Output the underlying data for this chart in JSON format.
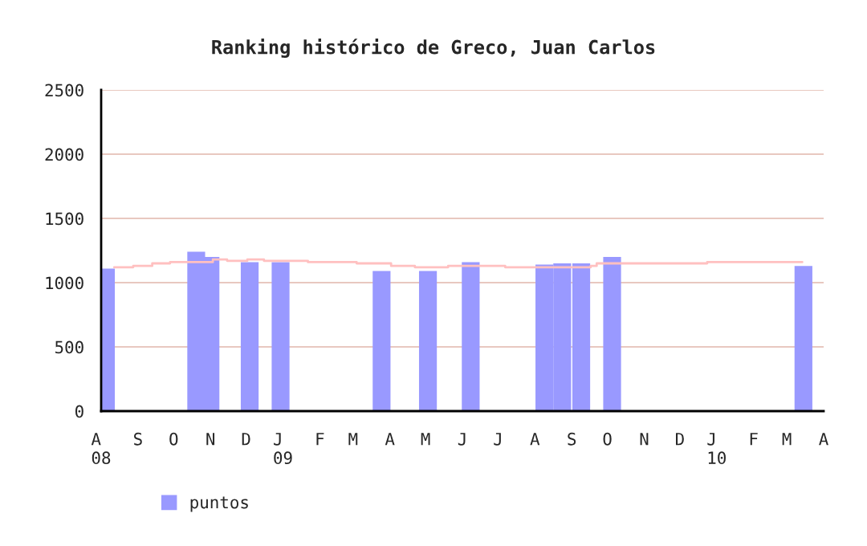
{
  "chart_data": {
    "type": "bar",
    "title": "Ranking histórico de Greco, Juan Carlos",
    "xlim": [
      "2008-08",
      "2010-04"
    ],
    "xticks": [
      {
        "value": "2008-08",
        "label": "A\n08"
      },
      {
        "value": "2008-09",
        "label": "S"
      },
      {
        "value": "2008-10",
        "label": "O"
      },
      {
        "value": "2008-11",
        "label": "N"
      },
      {
        "value": "2008-12",
        "label": "D"
      },
      {
        "value": "2009-01",
        "label": "J\n09"
      },
      {
        "value": "2009-02",
        "label": "F"
      },
      {
        "value": "2009-03",
        "label": "M"
      },
      {
        "value": "2009-04",
        "label": "A"
      },
      {
        "value": "2009-05",
        "label": "M"
      },
      {
        "value": "2009-06",
        "label": "J"
      },
      {
        "value": "2009-07",
        "label": "J"
      },
      {
        "value": "2009-08",
        "label": "A"
      },
      {
        "value": "2009-09",
        "label": "S"
      },
      {
        "value": "2009-10",
        "label": "O"
      },
      {
        "value": "2009-11",
        "label": "N"
      },
      {
        "value": "2009-12",
        "label": "D"
      },
      {
        "value": "2010-01",
        "label": "J\n10"
      },
      {
        "value": "2010-02",
        "label": "F"
      },
      {
        "value": "2010-03",
        "label": "M"
      },
      {
        "value": "2010-04",
        "label": "A"
      }
    ],
    "ylim": [
      0,
      2500
    ],
    "yticks": [
      0,
      500,
      1000,
      1500,
      2000,
      2500
    ],
    "grid": "y",
    "legend": "bottom left",
    "series": [
      {
        "type": "step",
        "color": "#ffc0c0",
        "x": [
          "2008-08-12",
          "2008-08-28",
          "2008-09-13",
          "2008-09-28",
          "2008-11-03",
          "2008-11-15",
          "2008-12-02",
          "2008-12-16",
          "2009-01-22",
          "2009-03-04",
          "2009-04-02",
          "2009-04-22",
          "2009-05-20",
          "2009-07-07",
          "2009-09-17",
          "2009-09-22",
          "2009-12-24",
          "2010-03-14"
        ],
        "values": [
          1120,
          1130,
          1150,
          1160,
          1180,
          1170,
          1180,
          1170,
          1160,
          1150,
          1130,
          1120,
          1130,
          1120,
          1130,
          1150,
          1160,
          1160
        ]
      },
      {
        "name": "puntos",
        "color": "#9999ff",
        "x": [
          "2008-08-05",
          "2008-10-20",
          "2008-11-01",
          "2008-12-04",
          "2008-12-30",
          "2009-03-25",
          "2009-05-03",
          "2009-06-08",
          "2009-08-09",
          "2009-08-24",
          "2009-09-09",
          "2009-10-05",
          "2010-03-15"
        ],
        "values": [
          1110,
          1240,
          1200,
          1160,
          1160,
          1090,
          1090,
          1160,
          1140,
          1150,
          1150,
          1200,
          1130
        ]
      }
    ]
  }
}
